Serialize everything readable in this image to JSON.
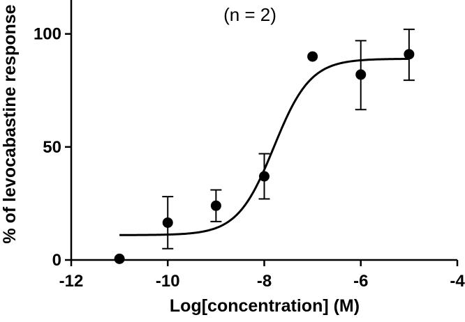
{
  "chart_data": {
    "type": "scatter",
    "annotation": "(n = 2)",
    "xlabel": "Log[concentration] (M)",
    "ylabel": "% of levocabastine response",
    "xlim": [
      -12,
      -4
    ],
    "ylim": [
      0,
      115
    ],
    "xticks": [
      -12,
      -10,
      -8,
      -6,
      -4
    ],
    "xtick_labels": [
      "-12",
      "-10",
      "-8",
      "-6",
      "-4"
    ],
    "yticks": [
      0,
      50,
      100
    ],
    "ytick_labels": [
      "0",
      "50",
      "100"
    ],
    "grid": false,
    "legend": "none",
    "points": [
      {
        "x": -11,
        "y": 0.5
      },
      {
        "x": -10,
        "y": 16.5,
        "err_low": 5,
        "err_high": 28
      },
      {
        "x": -9,
        "y": 24,
        "err_low": 17,
        "err_high": 31
      },
      {
        "x": -8,
        "y": 37,
        "err_low": 27,
        "err_high": 47
      },
      {
        "x": -7,
        "y": 90
      },
      {
        "x": -6,
        "y": 82,
        "err_low": 66.5,
        "err_high": 97
      },
      {
        "x": -5,
        "y": 91,
        "err_low": 79.5,
        "err_high": 102
      }
    ],
    "fit": {
      "model": "sigmoidal dose-response",
      "bottom": 11,
      "top": 89,
      "logEC50": -7.8,
      "hill_slope": 1.15
    },
    "color": "#000000"
  }
}
